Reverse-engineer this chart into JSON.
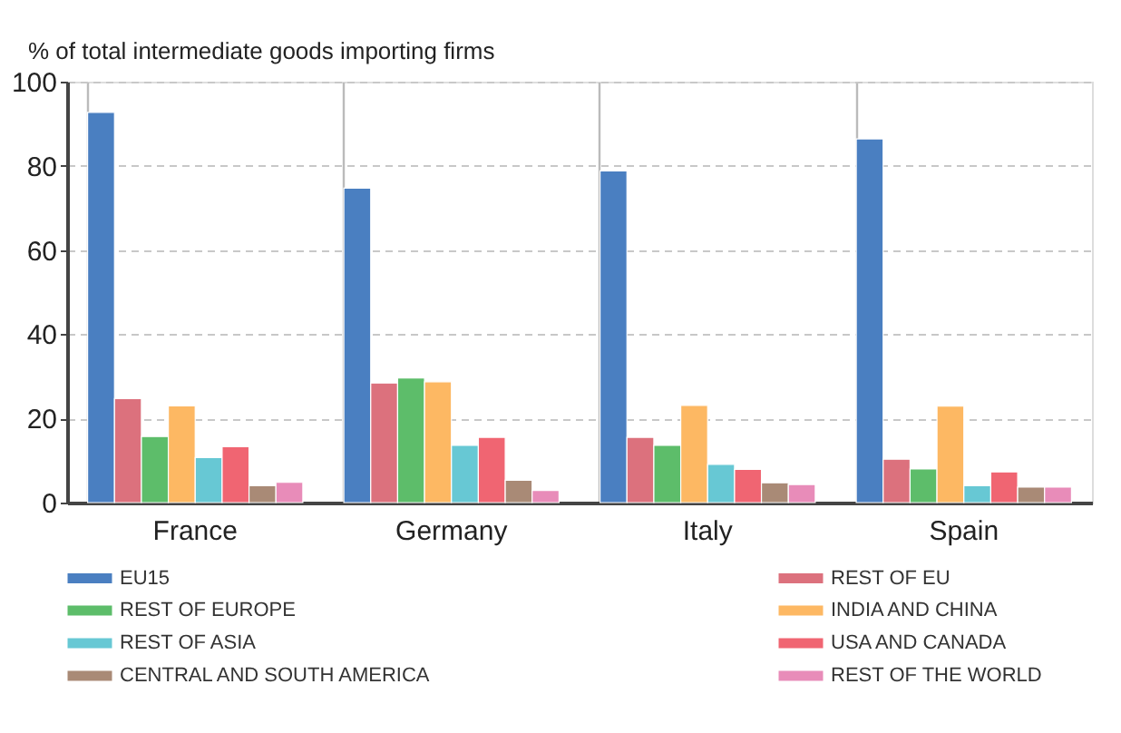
{
  "chart_data": {
    "type": "bar",
    "ylabel": "% of total intermediate goods importing firms",
    "categories": [
      "France",
      "Germany",
      "Italy",
      "Spain"
    ],
    "series": [
      {
        "name": "EU15",
        "color": "#4a7fc1",
        "values": [
          92.7,
          74.7,
          78.8,
          86.4
        ]
      },
      {
        "name": "REST OF EU",
        "color": "#dc717d",
        "values": [
          24.7,
          28.4,
          15.5,
          10.3
        ]
      },
      {
        "name": "REST OF EUROPE",
        "color": "#5dbd6a",
        "values": [
          15.7,
          29.6,
          13.6,
          8
        ]
      },
      {
        "name": "INDIA AND CHINA",
        "color": "#fdb863",
        "values": [
          23,
          28.7,
          23.1,
          22.9
        ]
      },
      {
        "name": "REST OF ASIA",
        "color": "#67c8d4",
        "values": [
          10.7,
          13.6,
          9.1,
          4
        ]
      },
      {
        "name": "USA AND CANADA",
        "color": "#f06572",
        "values": [
          13.3,
          15.5,
          7.9,
          7.3
        ]
      },
      {
        "name": "CENTRAL AND SOUTH AMERICA",
        "color": "#a98a76",
        "values": [
          4,
          5.3,
          4.7,
          3.7
        ]
      },
      {
        "name": "REST OF THE WORLD",
        "color": "#e88cb9",
        "values": [
          4.8,
          2.9,
          4.3,
          3.7
        ]
      }
    ],
    "ylim": [
      0,
      100
    ],
    "yticks": [
      0,
      20,
      40,
      60,
      80,
      100
    ],
    "grid": true,
    "legend": "bottom"
  }
}
